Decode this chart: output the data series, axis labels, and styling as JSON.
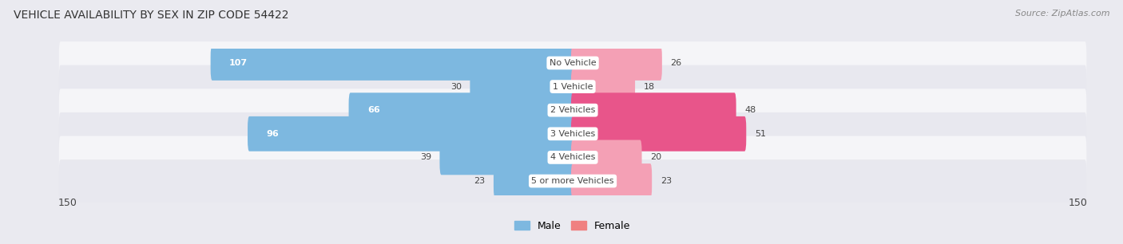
{
  "title": "VEHICLE AVAILABILITY BY SEX IN ZIP CODE 54422",
  "source": "Source: ZipAtlas.com",
  "categories": [
    "No Vehicle",
    "1 Vehicle",
    "2 Vehicles",
    "3 Vehicles",
    "4 Vehicles",
    "5 or more Vehicles"
  ],
  "male_values": [
    107,
    30,
    66,
    96,
    39,
    23
  ],
  "female_values": [
    26,
    18,
    48,
    51,
    20,
    23
  ],
  "male_color": "#7db8e0",
  "female_colors": [
    "#f4a0b5",
    "#f4a0b5",
    "#e8558a",
    "#e8558a",
    "#f4a0b5",
    "#f4a0b5"
  ],
  "xlim": 150,
  "bg_color": "#eaeaf0",
  "row_colors": [
    "#f5f5f8",
    "#e8e8ef",
    "#f5f5f8",
    "#e8e8ef",
    "#f5f5f8",
    "#e8e8ef"
  ],
  "label_color": "#444444",
  "title_color": "#333333",
  "source_color": "#888888",
  "val_inside_color": "white",
  "val_outside_color": "#444444",
  "inside_threshold": 60
}
